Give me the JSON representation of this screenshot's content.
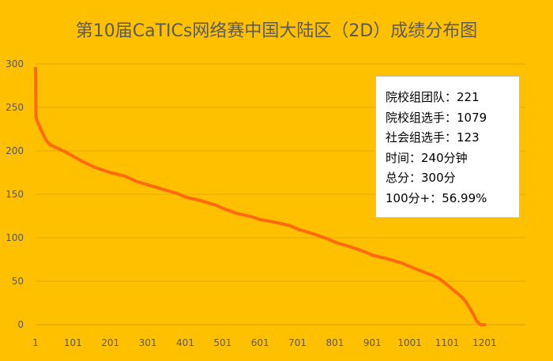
{
  "chart_data": {
    "type": "line",
    "title": "第10届CaTICs网络赛中国大陆区（2D）成绩分布图",
    "xlabel": "",
    "ylabel": "",
    "xlim": [
      1,
      1310
    ],
    "ylim": [
      0,
      300
    ],
    "y_ticks": [
      0,
      50,
      100,
      150,
      200,
      250,
      300
    ],
    "x_ticks": [
      1,
      101,
      201,
      301,
      401,
      501,
      601,
      701,
      801,
      901,
      1001,
      1101,
      1201
    ],
    "grid": "horizontal",
    "legend": "none",
    "line_color": "#ff6a10",
    "series": [
      {
        "x": [
          1,
          2,
          4,
          8,
          12,
          20,
          30,
          40,
          60,
          80,
          101,
          130,
          160,
          201,
          240,
          270,
          301,
          340,
          380,
          401,
          440,
          480,
          501,
          540,
          580,
          601,
          640,
          680,
          701,
          740,
          780,
          801,
          840,
          880,
          901,
          940,
          980,
          1001,
          1030,
          1060,
          1080,
          1101,
          1120,
          1140,
          1150,
          1160,
          1170,
          1180,
          1190,
          1201
        ],
        "values": [
          295,
          240,
          236,
          232,
          228,
          220,
          212,
          207,
          203,
          199,
          194,
          187,
          181,
          175,
          171,
          165,
          161,
          156,
          151,
          147,
          143,
          138,
          134,
          128,
          124,
          121,
          118,
          114,
          110,
          105,
          99,
          95,
          90,
          84,
          80,
          76,
          71,
          67,
          62,
          57,
          53,
          46,
          39,
          32,
          27,
          20,
          13,
          4,
          0,
          0
        ]
      }
    ]
  },
  "info_box": {
    "lines": [
      "院校组团队：221",
      "院校组选手：1079",
      "社会组选手：123",
      "时间：240分钟",
      "总分：300分",
      "100分+：56.99%"
    ]
  }
}
